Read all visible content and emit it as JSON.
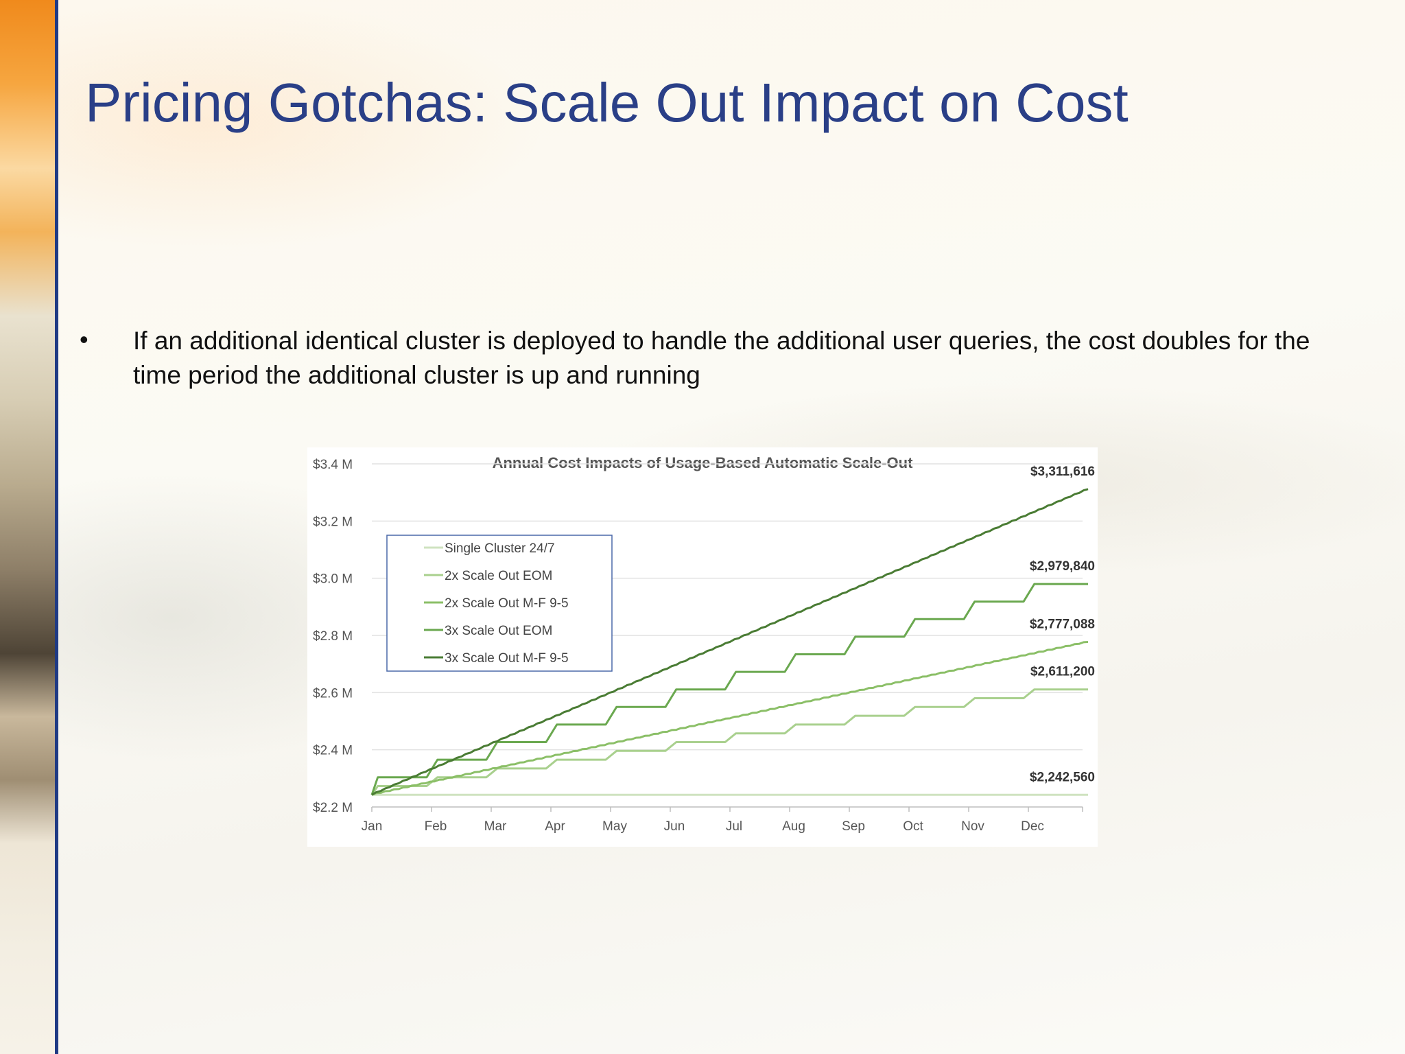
{
  "slide": {
    "title": "Pricing Gotchas: Scale Out Impact on Cost",
    "bullet_marker": "•",
    "bullet_text": "If an additional identical cluster is deployed to handle the additional user queries, the cost doubles for the time period the additional cluster is up and running"
  },
  "colors": {
    "title": "#2a3f87",
    "rule": "#1f3a84",
    "legend_border": "#4a68a8"
  },
  "chart_data": {
    "type": "line",
    "title": "Annual Cost Impacts of Usage-Based Automatic Scale-Out",
    "xlabel": "",
    "ylabel": "",
    "categories": [
      "Jan",
      "Feb",
      "Mar",
      "Apr",
      "May",
      "Jun",
      "Jul",
      "Aug",
      "Sep",
      "Oct",
      "Nov",
      "Dec"
    ],
    "ylim": [
      2.2,
      3.4
    ],
    "yticks": [
      {
        "value": 3.4,
        "label": "$3.4 M"
      },
      {
        "value": 3.2,
        "label": "$3.2 M"
      },
      {
        "value": 3.0,
        "label": "$3.0 M"
      },
      {
        "value": 2.8,
        "label": "$2.8 M"
      },
      {
        "value": 2.6,
        "label": "$2.6 M"
      },
      {
        "value": 2.4,
        "label": "$2.4 M"
      },
      {
        "value": 2.2,
        "label": "$2.2 M"
      }
    ],
    "grid": true,
    "legend_position": "top-left",
    "series": [
      {
        "name": "Single Cluster 24/7",
        "color": "#cfe3c0",
        "kind": "flat",
        "start": 2.2426,
        "end": 2.2426,
        "end_label": "$2,242,560"
      },
      {
        "name": "2x Scale Out EOM",
        "color": "#a9d08e",
        "kind": "step",
        "start": 2.2426,
        "end": 2.6112,
        "end_label": "$2,611,200"
      },
      {
        "name": "2x Scale Out M-F 9-5",
        "color": "#8bbf67",
        "kind": "linear",
        "start": 2.2426,
        "end": 2.7771,
        "end_label": "$2,777,088"
      },
      {
        "name": "3x Scale Out EOM",
        "color": "#6aa84f",
        "kind": "step",
        "start": 2.2426,
        "end": 2.9798,
        "end_label": "$2,979,840"
      },
      {
        "name": "3x Scale Out M-F 9-5",
        "color": "#4a7c34",
        "kind": "linear",
        "start": 2.2426,
        "end": 3.3116,
        "end_label": "$3,311,616"
      }
    ]
  }
}
